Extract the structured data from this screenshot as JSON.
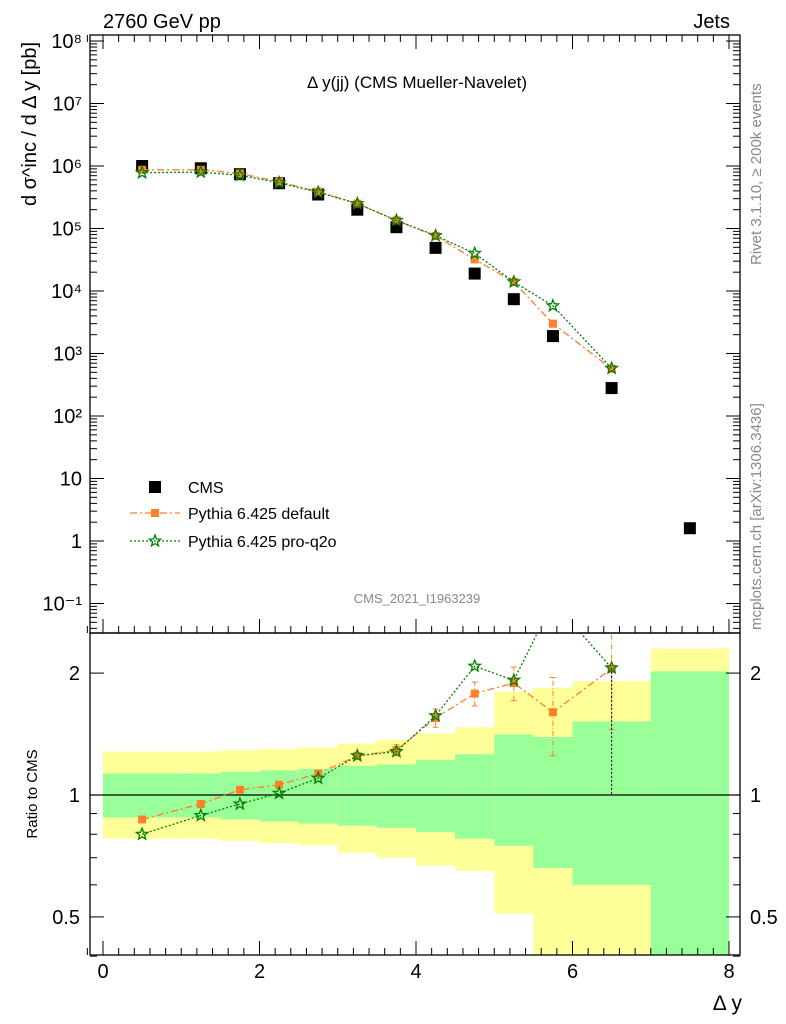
{
  "header": {
    "left": "2760 GeV pp",
    "right": "Jets"
  },
  "chart_data": {
    "type": "scatter",
    "title": "Δ y(jj) (CMS Mueller-Navelet)",
    "analysis_id": "CMS_2021_I1963239",
    "side_text_top": "Rivet 3.1.10, ≥ 200k events",
    "side_text_bottom": "mcplots.cern.ch [arXiv:1306.3436]",
    "xlabel": "Δ y",
    "ylabel": "d σ^inc / d Δ y [pb]",
    "ratio_ylabel": "Ratio to CMS",
    "xlim": [
      -0.2,
      8.0
    ],
    "ylim_log": [
      0.03,
      150000000
    ],
    "ratio_ylim": [
      0.36,
      2.3
    ],
    "x_ticks": [
      0,
      2,
      4,
      6,
      8
    ],
    "y_tick_labels": [
      "10⁻¹",
      "1",
      "10",
      "10²",
      "10³",
      "10⁴",
      "10⁵",
      "10⁶",
      "10⁷",
      "10⁸"
    ],
    "ratio_tick_labels": [
      "0.5",
      "1",
      "2"
    ],
    "legend_position": "bottom-left",
    "bins": [
      [
        0,
        1
      ],
      [
        1,
        1.5
      ],
      [
        1.5,
        2
      ],
      [
        2,
        2.5
      ],
      [
        2.5,
        3
      ],
      [
        3,
        3.5
      ],
      [
        3.5,
        4
      ],
      [
        4,
        4.5
      ],
      [
        4.5,
        5
      ],
      [
        5,
        5.5
      ],
      [
        5.5,
        6
      ],
      [
        6,
        7
      ],
      [
        7,
        8
      ]
    ],
    "series": [
      {
        "name": "CMS",
        "color": "#000000",
        "x": [
          0.5,
          1.25,
          1.75,
          2.25,
          2.75,
          3.25,
          3.75,
          4.25,
          4.75,
          5.25,
          5.75,
          6.5,
          7.5
        ],
        "y": [
          1000000,
          920000,
          740000,
          530000,
          350000,
          200000,
          105000,
          49000,
          19000,
          7400,
          1900,
          280,
          1.6
        ]
      },
      {
        "name": "Pythia 6.425 default",
        "color": "#ff7f2a",
        "x": [
          0.5,
          1.25,
          1.75,
          2.25,
          2.75,
          3.25,
          3.75,
          4.25,
          4.75,
          5.25,
          5.75,
          6.5
        ],
        "y": [
          870000,
          870000,
          760000,
          560000,
          390000,
          250000,
          135000,
          76000,
          32000,
          14000,
          3000,
          570
        ],
        "ratio": [
          0.87,
          0.95,
          1.03,
          1.06,
          1.13,
          1.25,
          1.29,
          1.55,
          1.78,
          1.89,
          1.6,
          2.05
        ],
        "ratio_err": [
          0.01,
          0.01,
          0.01,
          0.01,
          0.02,
          0.02,
          0.04,
          0.08,
          0.12,
          0.18,
          0.35,
          0.6
        ]
      },
      {
        "name": "Pythia 6.425 pro-q2o",
        "color": "#008000",
        "x": [
          0.5,
          1.25,
          1.75,
          2.25,
          2.75,
          3.25,
          3.75,
          4.25,
          4.75,
          5.25,
          5.75,
          6.5
        ],
        "y": [
          780000,
          800000,
          710000,
          540000,
          380000,
          250000,
          135000,
          77000,
          40000,
          14000,
          5800,
          580
        ],
        "ratio": [
          0.8,
          0.89,
          0.95,
          1.01,
          1.1,
          1.25,
          1.28,
          1.57,
          2.08,
          1.92,
          3.0,
          2.06
        ]
      }
    ],
    "uncertainty_bands": {
      "inner_color": "#99ff99",
      "outer_color": "#ffff99",
      "inner": [
        [
          0.88,
          1.13
        ],
        [
          0.88,
          1.13
        ],
        [
          0.87,
          1.14
        ],
        [
          0.86,
          1.15
        ],
        [
          0.85,
          1.16
        ],
        [
          0.84,
          1.18
        ],
        [
          0.83,
          1.19
        ],
        [
          0.81,
          1.22
        ],
        [
          0.78,
          1.26
        ],
        [
          0.75,
          1.41
        ],
        [
          0.66,
          1.39
        ],
        [
          0.6,
          1.52
        ],
        [
          0.36,
          2.02
        ]
      ],
      "outer": [
        [
          0.78,
          1.28
        ],
        [
          0.78,
          1.28
        ],
        [
          0.77,
          1.29
        ],
        [
          0.76,
          1.3
        ],
        [
          0.75,
          1.31
        ],
        [
          0.72,
          1.34
        ],
        [
          0.7,
          1.37
        ],
        [
          0.67,
          1.42
        ],
        [
          0.65,
          1.47
        ],
        [
          0.51,
          1.8
        ],
        [
          0.39,
          1.84
        ],
        [
          0.39,
          1.91
        ],
        [
          0.36,
          2.3
        ]
      ]
    }
  }
}
